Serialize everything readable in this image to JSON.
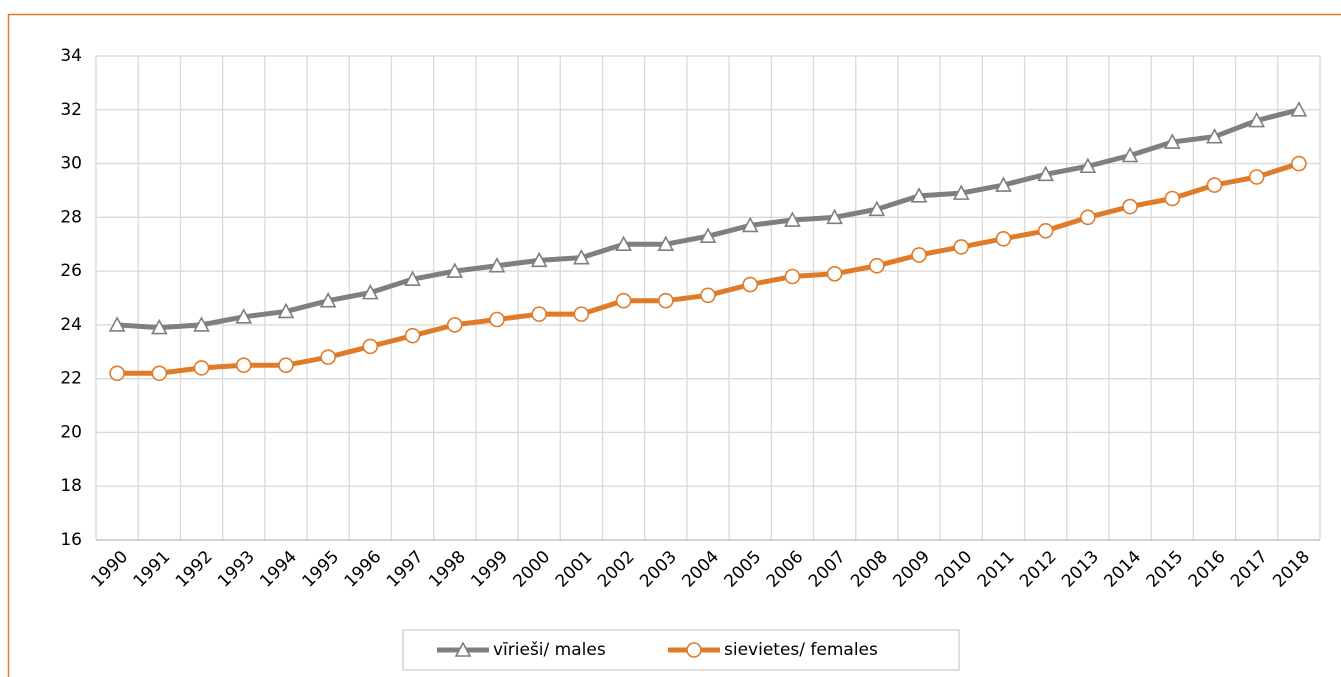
{
  "chart_data": {
    "type": "line",
    "categories": [
      "1990",
      "1991",
      "1992",
      "1993",
      "1994",
      "1995",
      "1996",
      "1997",
      "1998",
      "1999",
      "2000",
      "2001",
      "2002",
      "2003",
      "2004",
      "2005",
      "2006",
      "2007",
      "2008",
      "2009",
      "2010",
      "2011",
      "2012",
      "2013",
      "2014",
      "2015",
      "2016",
      "2017",
      "2018"
    ],
    "series": [
      {
        "name": "vīrieši/ males",
        "color": "#7f7f7f",
        "marker": "triangle",
        "values": [
          24.0,
          23.9,
          24.0,
          24.3,
          24.5,
          24.9,
          25.2,
          25.7,
          26.0,
          26.2,
          26.4,
          26.5,
          27.0,
          27.0,
          27.3,
          27.7,
          27.9,
          28.0,
          28.3,
          28.8,
          28.9,
          29.2,
          29.6,
          29.9,
          30.3,
          30.8,
          31.0,
          31.6,
          32.0
        ]
      },
      {
        "name": "sievietes/ females",
        "color": "#e07b2a",
        "marker": "circle",
        "values": [
          22.2,
          22.2,
          22.4,
          22.5,
          22.5,
          22.8,
          23.2,
          23.6,
          24.0,
          24.2,
          24.4,
          24.4,
          24.9,
          24.9,
          25.1,
          25.5,
          25.8,
          25.9,
          26.2,
          26.6,
          26.9,
          27.2,
          27.5,
          28.0,
          28.4,
          28.7,
          29.2,
          29.5,
          30.0
        ]
      }
    ],
    "ylim": [
      16,
      34
    ],
    "yticks": [
      16,
      18,
      20,
      22,
      24,
      26,
      28,
      30,
      32,
      34
    ],
    "grid": true,
    "legend": "bottom"
  }
}
